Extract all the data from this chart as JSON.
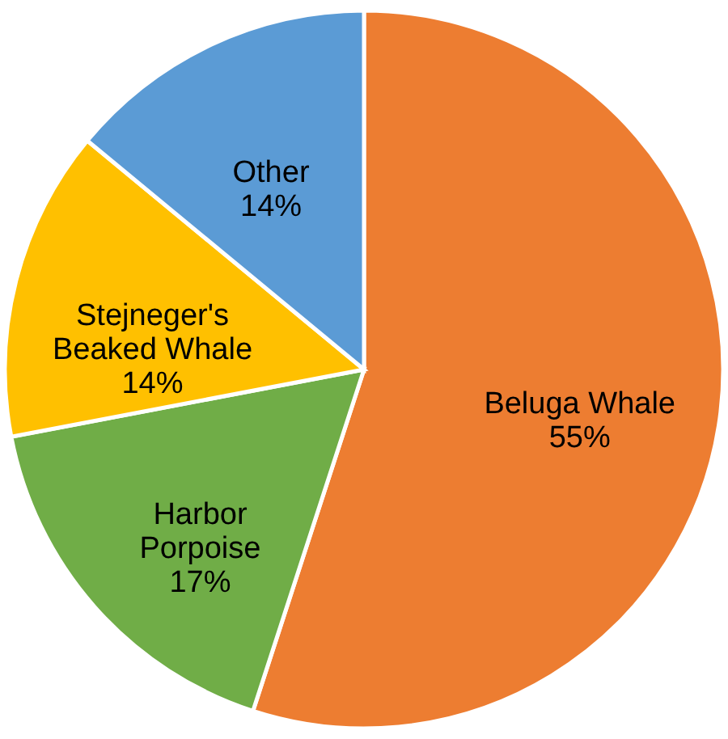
{
  "chart_data": {
    "type": "pie",
    "categories": [
      "Beluga Whale",
      "Harbor Porpoise",
      "Stejneger's Beaked Whale",
      "Other"
    ],
    "values": [
      55,
      17,
      14,
      14
    ],
    "colors": [
      "#ed7d31",
      "#70ad47",
      "#ffc000",
      "#5b9bd5"
    ],
    "value_labels": [
      "55%",
      "17%",
      "14%",
      "14%"
    ]
  }
}
